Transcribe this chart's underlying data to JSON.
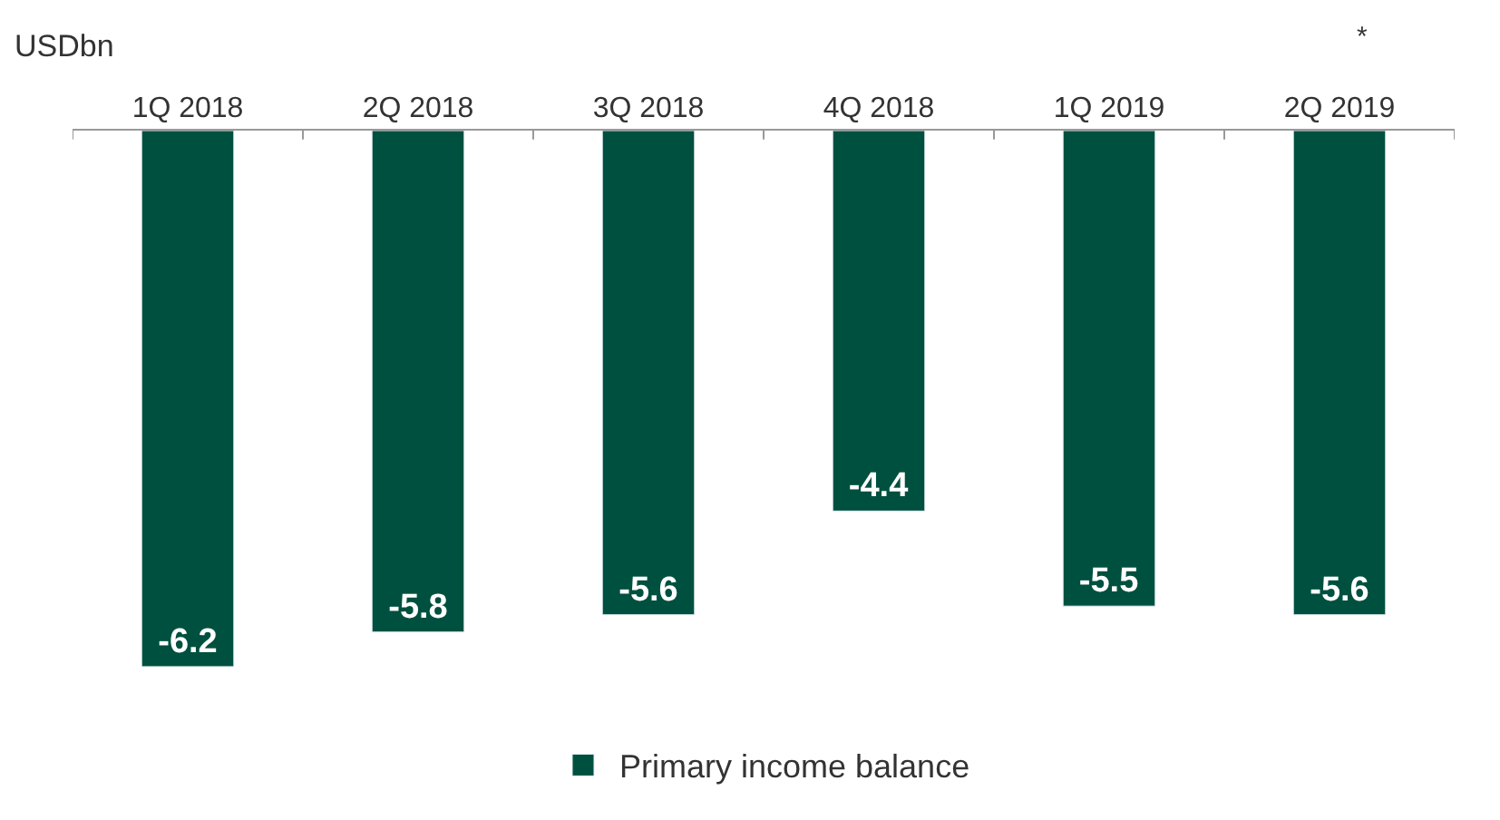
{
  "chart_data": {
    "type": "bar",
    "ylabel": "USDbn",
    "categories": [
      "1Q 2018",
      "2Q 2018",
      "3Q 2018",
      "4Q 2018",
      "1Q 2019",
      "2Q 2019"
    ],
    "series": [
      {
        "name": "Primary income balance",
        "color": "#00503f",
        "values": [
          -6.2,
          -5.8,
          -5.6,
          -4.4,
          -5.5,
          -5.6
        ]
      }
    ],
    "annotations": [
      "*"
    ],
    "data_labels": true,
    "legend": "bottom"
  }
}
